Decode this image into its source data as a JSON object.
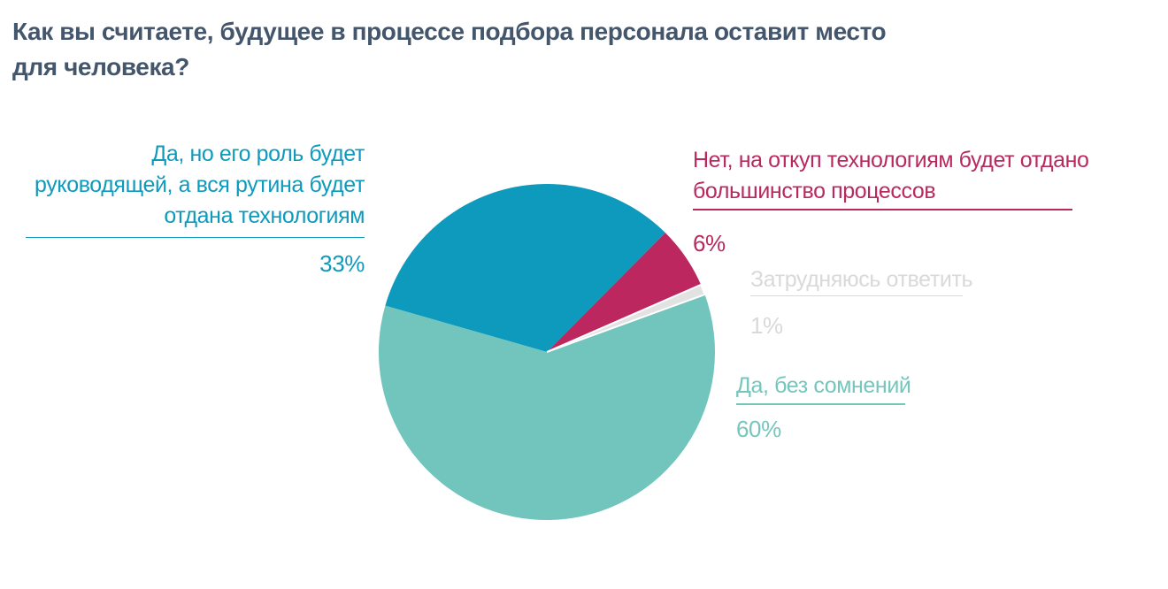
{
  "title": {
    "full": "Как вы считаете, будущее в процессе подбора персонала оставит место для человека?",
    "lines": [
      "Как вы считаете, будущее в процессе подбора персонала оставит место",
      "для человека?"
    ],
    "color": "#44566b"
  },
  "chart_data": {
    "type": "pie",
    "title": "Как вы считаете, будущее в процессе подбора персонала оставит место для человека?",
    "start_angle_deg": 164,
    "direction": "clockwise",
    "legend_position": "callout-labels",
    "total_pct": 100,
    "slices": [
      {
        "label": "Да, но его роль будет руководящей, а вся рутина будет отдана технологиям",
        "value_pct": 33,
        "pct_label": "33%",
        "color": "#0e9abd"
      },
      {
        "label": "Нет, на откуп технологиям будет отдано большинство процессов",
        "value_pct": 6,
        "pct_label": "6%",
        "color": "#bc2760"
      },
      {
        "label": "Затрудняюсь ответить",
        "value_pct": 1,
        "pct_label": "1%",
        "color": "#e2e2e2",
        "outline": "#ffffff"
      },
      {
        "label": "Да, без сомнений",
        "value_pct": 60,
        "pct_label": "60%",
        "color": "#72c5bc"
      }
    ]
  },
  "callouts": {
    "leading_role": {
      "lines": [
        "Да, но его роль будет",
        "руководящей, а вся рутина будет",
        "отдана технологиям"
      ],
      "pct": "33%",
      "color": "#0e9abd"
    },
    "technology": {
      "lines": [
        "Нет, на откуп технологиям будет отдано",
        "большинство процессов"
      ],
      "pct": "6%",
      "color": "#b8295e"
    },
    "undecided": {
      "lines": [
        "Затрудняюсь ответить"
      ],
      "pct": "1%",
      "color": "#d9d9d9"
    },
    "no_doubt": {
      "lines": [
        "Да, без сомнений"
      ],
      "pct": "60%",
      "color": "#75c6bc"
    }
  }
}
